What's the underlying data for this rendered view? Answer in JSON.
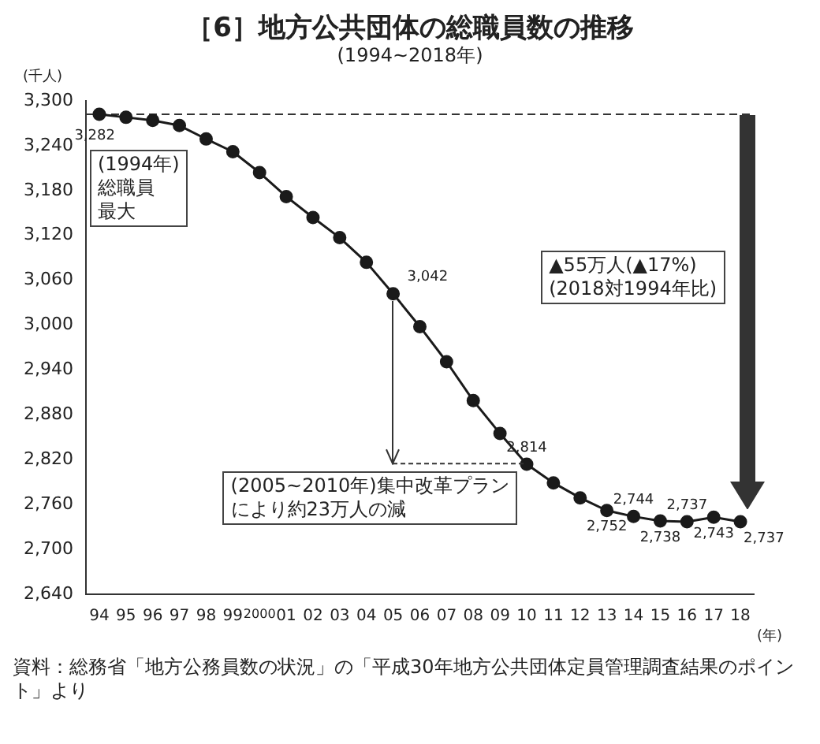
{
  "chart_data": {
    "type": "line",
    "title": "［6］地方公共団体の総職員数の推移",
    "subtitle": "(1994~2018年)",
    "ylabel": "(千人)",
    "xlabel": "(年)",
    "categories": [
      "94",
      "95",
      "96",
      "97",
      "98",
      "99",
      "2000",
      "01",
      "02",
      "03",
      "04",
      "05",
      "06",
      "07",
      "08",
      "09",
      "10",
      "11",
      "12",
      "13",
      "14",
      "15",
      "16",
      "17",
      "18"
    ],
    "series": [
      {
        "color": "#1a1a1a",
        "values": [
          3282,
          3278,
          3274,
          3267,
          3249,
          3232,
          3204,
          3172,
          3144,
          3117,
          3084,
          3042,
          2998,
          2951,
          2899,
          2855,
          2814,
          2789,
          2769,
          2752,
          2744,
          2738,
          2737,
          2743,
          2737
        ],
        "value_labels": [
          "3,282",
          null,
          null,
          null,
          null,
          null,
          null,
          null,
          null,
          null,
          null,
          "3,042",
          null,
          null,
          null,
          null,
          "2,814",
          null,
          null,
          "2,752",
          "2,744",
          "2,738",
          "2,737",
          "2,743",
          "2,737"
        ]
      }
    ],
    "ylim": [
      2640,
      3300
    ],
    "yticks": [
      {
        "value": 2640,
        "label": "2,640"
      },
      {
        "value": 2700,
        "label": "2,700"
      },
      {
        "value": 2760,
        "label": "2,760"
      },
      {
        "value": 2820,
        "label": "2,820"
      },
      {
        "value": 2880,
        "label": "2,880"
      },
      {
        "value": 2940,
        "label": "2,940"
      },
      {
        "value": 3000,
        "label": "3,000"
      },
      {
        "value": 3060,
        "label": "3,060"
      },
      {
        "value": 3120,
        "label": "3,120"
      },
      {
        "value": 3180,
        "label": "3,180"
      },
      {
        "value": 3240,
        "label": "3,240"
      },
      {
        "value": 3300,
        "label": "3,300"
      }
    ],
    "grid": false,
    "legend": false,
    "marker": "circle",
    "line_style": "solid",
    "ref_lines": [
      {
        "axis": "y",
        "value": 3282,
        "line_style": "dashed",
        "color": "#333333"
      }
    ],
    "annotations": [
      "(1994年)総職員最大",
      {
        "text": "(2005~2010年)集中改革プランにより約23万人の減",
        "x": "05",
        "y": 3042
      },
      "▲55万人(▲17%)(2018対1994年比)",
      "資料：総務省「地方公務員数の状況」の「平成30年地方公共団体定員管理調査結果のポイント」より"
    ]
  }
}
